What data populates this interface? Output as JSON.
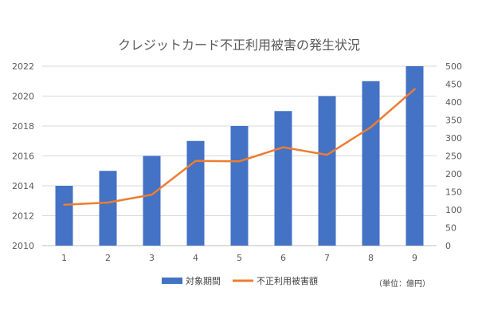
{
  "chart_data": {
    "type": "bar",
    "title": "クレジットカード不正利用被害の発生状況",
    "categories": [
      "1",
      "2",
      "3",
      "4",
      "5",
      "6",
      "7",
      "8",
      "9"
    ],
    "series": [
      {
        "name": "対象期間",
        "type": "bar",
        "axis": "left",
        "values": [
          2014,
          2015,
          2016,
          2017,
          2018,
          2019,
          2020,
          2021,
          2022
        ],
        "color": "#4472c4"
      },
      {
        "name": "不正利用被害額",
        "type": "line",
        "axis": "right",
        "values": [
          114,
          120,
          142,
          236,
          235,
          274,
          253,
          330,
          436
        ],
        "color": "#ed7d31"
      }
    ],
    "y_left": {
      "min": 2010,
      "max": 2022,
      "ticks": [
        "2010",
        "2012",
        "2014",
        "2016",
        "2018",
        "2020",
        "2022"
      ]
    },
    "y_right": {
      "min": 0,
      "max": 500,
      "ticks": [
        "0",
        "50",
        "100",
        "150",
        "200",
        "250",
        "300",
        "350",
        "400",
        "450",
        "500"
      ]
    },
    "grid": true,
    "legend": "bottom",
    "unit_note": "（単位：億円）"
  }
}
